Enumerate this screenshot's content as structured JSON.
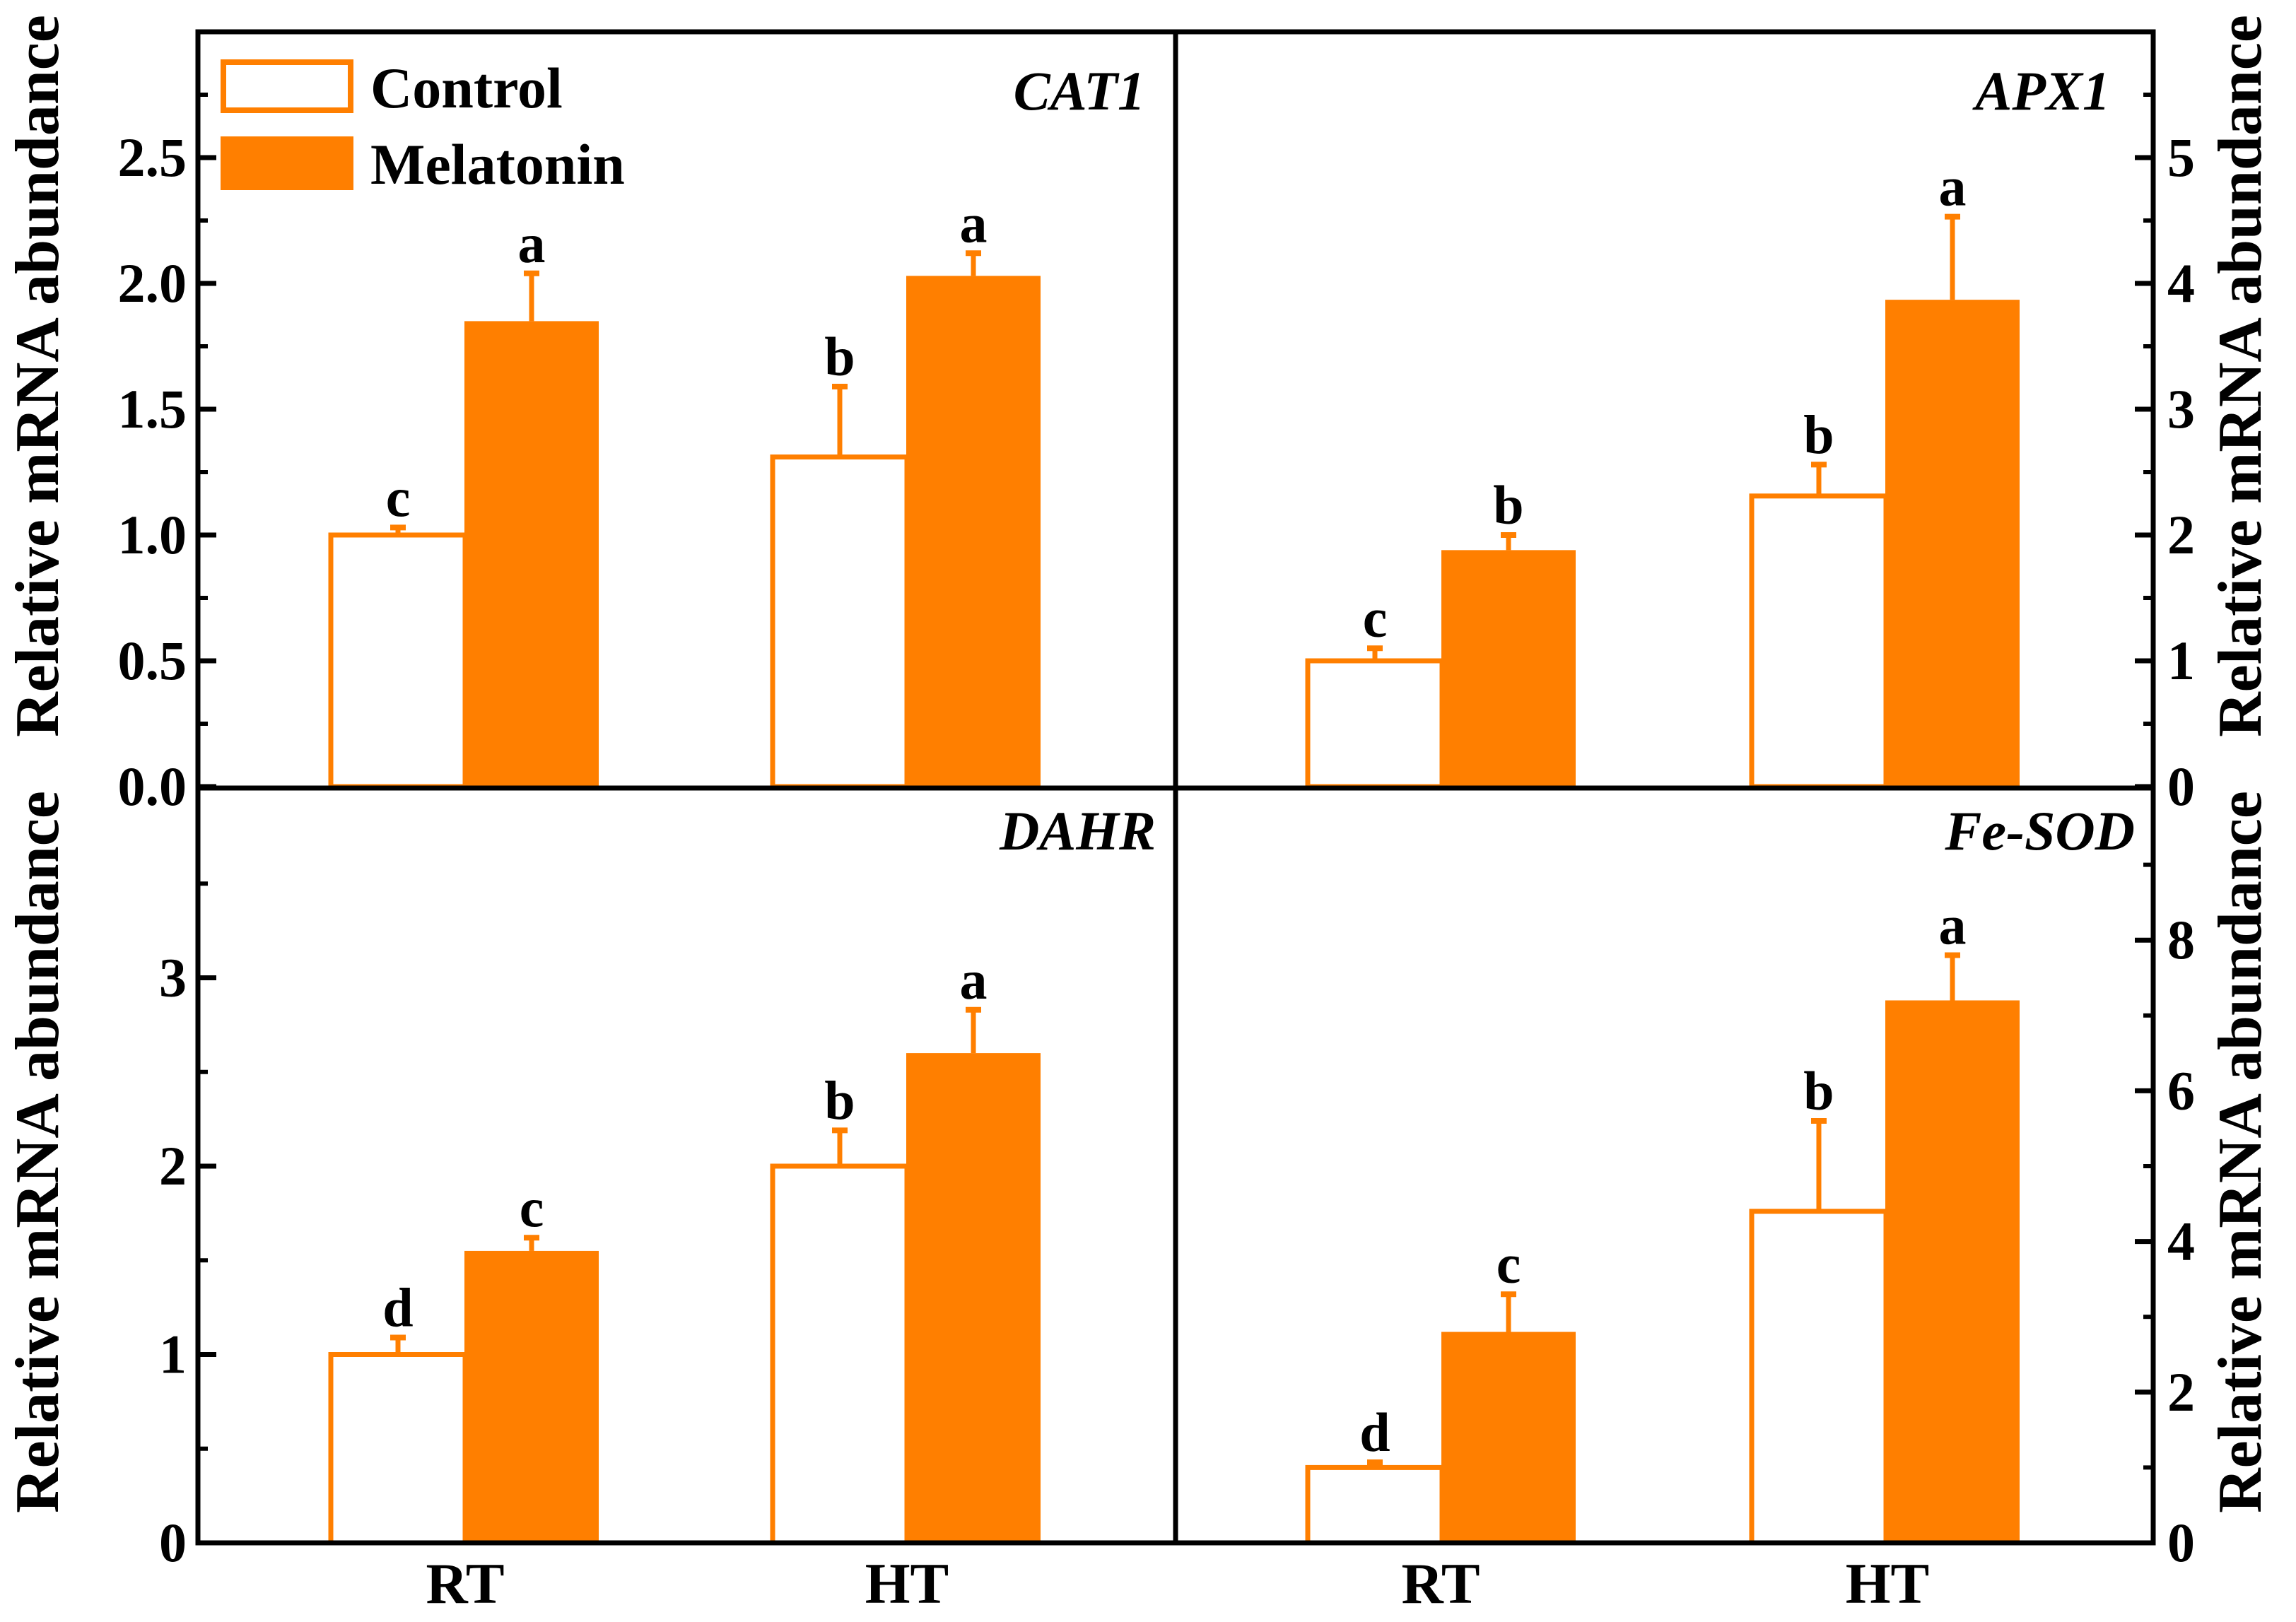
{
  "colors": {
    "control_edge": "#FF7F00",
    "control_fill": "#FFFFFF",
    "melatonin_fill": "#FF7F00",
    "axes": "#000000"
  },
  "legend": {
    "control_label": "Control",
    "melatonin_label": "Melatonin"
  },
  "axis_titles": {
    "left_top": "Relative mRNA abundance",
    "left_bottom": "Relative mRNA abundance",
    "right_top": "Relative mRNA abundance",
    "right_bottom": "Relative mRNA abundance"
  },
  "x_labels": {
    "bottom_left_rt": "RT",
    "bottom_left_ht": "HT",
    "bottom_right_rt": "RT",
    "bottom_right_ht": "HT"
  },
  "chart_data": [
    {
      "type": "bar",
      "panel": "top-left",
      "gene": "CAT1",
      "ylabel": "Relative mRNA abundance",
      "ylim": [
        0,
        3
      ],
      "yticks": [
        "0.0",
        "0.5",
        "1.0",
        "1.5",
        "2.0",
        "2.5"
      ],
      "categories": [
        "RT",
        "HT"
      ],
      "series": [
        {
          "name": "Control",
          "values": [
            1.0,
            1.31
          ],
          "errors": [
            0.03,
            0.28
          ],
          "letters": [
            "c",
            "b"
          ]
        },
        {
          "name": "Melatonin",
          "values": [
            1.85,
            2.03
          ],
          "errors": [
            0.19,
            0.09
          ],
          "letters": [
            "a",
            "a"
          ]
        }
      ]
    },
    {
      "type": "bar",
      "panel": "top-right",
      "gene": "APX1",
      "ylabel": "Relative mRNA abundance",
      "ylim": [
        0,
        6
      ],
      "yticks": [
        "0",
        "1",
        "2",
        "3",
        "4",
        "5"
      ],
      "categories": [
        "RT",
        "HT"
      ],
      "series": [
        {
          "name": "Control",
          "values": [
            1.0,
            2.31
          ],
          "errors": [
            0.1,
            0.25
          ],
          "letters": [
            "c",
            "b"
          ]
        },
        {
          "name": "Melatonin",
          "values": [
            1.88,
            3.87
          ],
          "errors": [
            0.12,
            0.66
          ],
          "letters": [
            "b",
            "a"
          ]
        }
      ]
    },
    {
      "type": "bar",
      "panel": "bottom-left",
      "gene": "DAHR",
      "ylabel": "Relative mRNA abundance",
      "ylim": [
        0,
        4
      ],
      "yticks": [
        "0",
        "1",
        "2",
        "3"
      ],
      "categories": [
        "RT",
        "HT"
      ],
      "series": [
        {
          "name": "Control",
          "values": [
            1.0,
            2.0
          ],
          "errors": [
            0.09,
            0.19
          ],
          "letters": [
            "d",
            "b"
          ]
        },
        {
          "name": "Melatonin",
          "values": [
            1.55,
            2.6
          ],
          "errors": [
            0.07,
            0.23
          ],
          "letters": [
            "c",
            "a"
          ]
        }
      ]
    },
    {
      "type": "bar",
      "panel": "bottom-right",
      "gene": "Fe-SOD",
      "ylabel": "Relative mRNA abundance",
      "ylim": [
        0,
        10
      ],
      "yticks": [
        "0",
        "2",
        "4",
        "6",
        "8"
      ],
      "categories": [
        "RT",
        "HT"
      ],
      "series": [
        {
          "name": "Control",
          "values": [
            1.0,
            4.4
          ],
          "errors": [
            0.07,
            1.2
          ],
          "letters": [
            "d",
            "b"
          ]
        },
        {
          "name": "Melatonin",
          "values": [
            2.8,
            7.2
          ],
          "errors": [
            0.5,
            0.6
          ],
          "letters": [
            "c",
            "a"
          ]
        }
      ]
    }
  ]
}
